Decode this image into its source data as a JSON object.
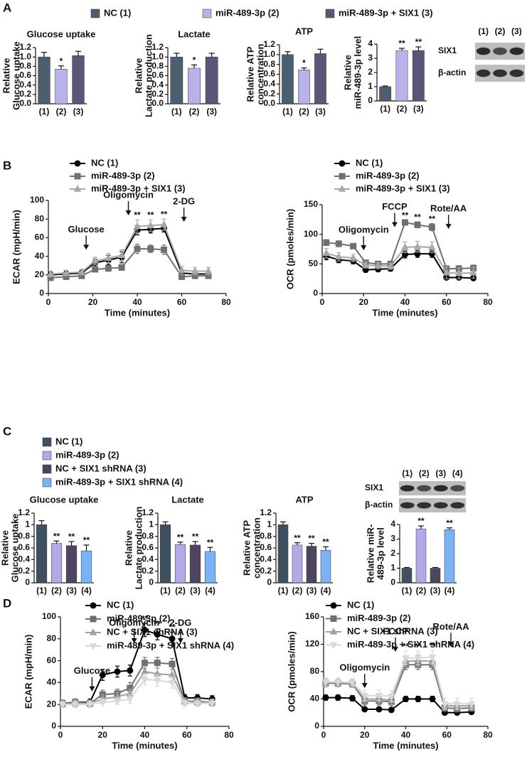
{
  "panels": [
    "A",
    "B",
    "C",
    "D"
  ],
  "legends": [
    {
      "entries": [
        {
          "name": "NC (1)",
          "color": "#4d5e6e"
        },
        {
          "name": "miR-489-3p (2)",
          "color": "#b9b2ea"
        },
        {
          "name": "miR-489-3p + SIX1 (3)",
          "color": "#5e5478"
        }
      ]
    },
    {
      "entries": [
        {
          "name": "NC (1)",
          "color": "#3f5160"
        },
        {
          "name": "miR-489-3p (2)",
          "color": "#b3a9e8"
        },
        {
          "name": "NC + SIX1 shRNA (3)",
          "color": "#4f4560"
        },
        {
          "name": "miR-489-3p + SIX1 shRNA (4)",
          "color": "#79b3f5"
        }
      ]
    }
  ],
  "blots": [
    {
      "lanes": [
        "(1)",
        "(2)",
        "(3)"
      ],
      "rows": [
        "SIX1",
        "β-actin"
      ]
    },
    {
      "lanes": [
        "(1)",
        "(2)",
        "(3)",
        "(4)"
      ],
      "rows": [
        "SIX1",
        "β-actin"
      ]
    }
  ],
  "chart_data": [
    {
      "type": "bar",
      "title": "Glucose uptake",
      "ylabel": [
        "Relative",
        "Glucose uptake"
      ],
      "categories": [
        "(1)",
        "(2)",
        "(3)"
      ],
      "values": [
        1.0,
        0.74,
        1.03
      ],
      "errors": [
        0.1,
        0.07,
        0.09
      ],
      "colors": [
        "#4d5e6e",
        "#b9b2ea",
        "#5e5478"
      ],
      "sig": [
        null,
        "*",
        null
      ],
      "ylim": [
        0,
        1.2
      ],
      "yticks": [
        {
          "value": 0,
          "label": "0.0"
        },
        0.2,
        0.4,
        0.6,
        0.8,
        {
          "value": 1,
          "label": "1.0"
        },
        1.2
      ]
    },
    {
      "type": "bar",
      "title": "Lactate",
      "ylabel": [
        "Relative",
        "Lactate production"
      ],
      "categories": [
        "(1)",
        "(2)",
        "(3)"
      ],
      "values": [
        1.0,
        0.76,
        1.0
      ],
      "errors": [
        0.08,
        0.07,
        0.08
      ],
      "colors": [
        "#4d5e6e",
        "#b9b2ea",
        "#5e5478"
      ],
      "sig": [
        null,
        "*",
        null
      ],
      "ylim": [
        0,
        1.2
      ],
      "yticks": [
        {
          "value": 0,
          "label": "0.0"
        },
        0.2,
        0.4,
        0.6,
        0.8,
        {
          "value": 1,
          "label": "1.0"
        },
        1.2
      ]
    },
    {
      "type": "bar",
      "title": "ATP",
      "ylabel": [
        "Relative ATP",
        "concentration"
      ],
      "categories": [
        "(1)",
        "(2)",
        "(3)"
      ],
      "values": [
        1.0,
        0.69,
        1.02
      ],
      "errors": [
        0.06,
        0.04,
        0.09
      ],
      "colors": [
        "#4d5e6e",
        "#b9b2ea",
        "#5e5478"
      ],
      "sig": [
        null,
        "*",
        null
      ],
      "ylim": [
        0,
        1.2
      ],
      "yticks": [
        {
          "value": 0,
          "label": "0.0"
        },
        0.2,
        0.4,
        0.6,
        0.8,
        {
          "value": 1,
          "label": "1.0"
        },
        1.2
      ]
    },
    {
      "type": "bar",
      "ylabel": [
        "Relative",
        "miR-489-3p level"
      ],
      "categories": [
        "(1)",
        "(2)",
        "(3)"
      ],
      "values": [
        1.0,
        3.55,
        3.55
      ],
      "errors": [
        0.05,
        0.15,
        0.25
      ],
      "colors": [
        "#4d5e6e",
        "#b9b2ea",
        "#5e5478"
      ],
      "sig": [
        null,
        "**",
        "**"
      ],
      "ylim": [
        0,
        4
      ],
      "yticks": [
        0,
        1,
        2,
        3,
        4
      ]
    },
    {
      "type": "line",
      "ylabel": "ECAR (mpH/min)",
      "xlabel": "Time (minutes)",
      "xlim": [
        0,
        80
      ],
      "xticks": [
        0,
        20,
        40,
        60,
        80
      ],
      "ylim": [
        0,
        100
      ],
      "yticks": [
        0,
        20,
        40,
        60,
        80,
        100
      ],
      "x": [
        1,
        8,
        15,
        21,
        27,
        33,
        40,
        46,
        52,
        60,
        66,
        72
      ],
      "series": [
        {
          "name": "NC (1)",
          "color": "#000000",
          "marker": "circle",
          "values": [
            20,
            21,
            22,
            33,
            36,
            39,
            68,
            69,
            70,
            22,
            21,
            21
          ],
          "errors": [
            3,
            3,
            3,
            4,
            5,
            6,
            5,
            4,
            4,
            3,
            3,
            3
          ]
        },
        {
          "name": "miR-489-3p (2)",
          "color": "#707070",
          "marker": "square",
          "values": [
            17,
            18,
            19,
            26,
            27,
            28,
            48,
            48,
            47,
            18,
            19,
            19
          ],
          "errors": [
            3,
            2,
            2,
            3,
            3,
            3,
            5,
            4,
            5,
            2,
            2,
            2
          ]
        },
        {
          "name": "miR-489-3p + SIX1 (3)",
          "color": "#a8a8a8",
          "marker": "triangle",
          "values": [
            21,
            22,
            23,
            35,
            38,
            41,
            72,
            73,
            74,
            25,
            24,
            24
          ],
          "errors": [
            3,
            3,
            3,
            4,
            5,
            6,
            7,
            6,
            6,
            4,
            4,
            4
          ]
        }
      ],
      "sig": [
        null,
        null,
        null,
        null,
        null,
        null,
        "**",
        "**",
        "**",
        null,
        null,
        null
      ],
      "annotations": [
        {
          "text": "Glucose",
          "x": 17,
          "y": 47
        },
        {
          "text": "Oligomycin",
          "x": 36,
          "y": 84
        },
        {
          "text": "2-DG",
          "x": 61,
          "y": 77
        }
      ]
    },
    {
      "type": "line",
      "ylabel": "OCR (pmoles/min)",
      "xlabel": "Time (minutes)",
      "xlim": [
        0,
        80
      ],
      "xticks": [
        0,
        20,
        40,
        60,
        80
      ],
      "ylim": [
        0,
        150
      ],
      "yticks": [
        0,
        50,
        100,
        150
      ],
      "x": [
        2,
        8,
        15,
        21,
        27,
        33,
        40,
        46,
        53,
        60,
        66,
        73
      ],
      "series": [
        {
          "name": "NC (1)",
          "color": "#000000",
          "marker": "circle",
          "values": [
            63,
            57,
            55,
            40,
            41,
            42,
            66,
            67,
            67,
            27,
            27,
            26
          ],
          "errors": [
            6,
            5,
            5,
            4,
            4,
            4,
            6,
            6,
            6,
            3,
            3,
            3
          ]
        },
        {
          "name": "miR-489-3p (2)",
          "color": "#707070",
          "marker": "square",
          "values": [
            86,
            84,
            80,
            52,
            50,
            50,
            120,
            116,
            112,
            42,
            42,
            43
          ],
          "errors": [
            5,
            5,
            4,
            4,
            4,
            4,
            4,
            5,
            6,
            5,
            5,
            5
          ]
        },
        {
          "name": "miR-489-3p + SIX1 (3)",
          "color": "#a8a8a8",
          "marker": "triangle",
          "values": [
            68,
            62,
            60,
            48,
            47,
            46,
            78,
            79,
            78,
            35,
            34,
            35
          ],
          "errors": [
            8,
            7,
            6,
            5,
            5,
            5,
            9,
            9,
            9,
            10,
            9,
            9
          ]
        }
      ],
      "sig": [
        null,
        null,
        null,
        null,
        null,
        null,
        "**",
        "**",
        "**",
        null,
        null,
        null
      ],
      "annotations": [
        {
          "text": "Oligomycin",
          "x": 20,
          "y": 73
        },
        {
          "text": "FCCP",
          "x": 35,
          "y": 112
        },
        {
          "text": "Rote/AA",
          "x": 61,
          "y": 109
        }
      ]
    },
    {
      "type": "bar",
      "title": "Glucose uptake",
      "ylabel": [
        "Relative",
        "Glucose uptake"
      ],
      "categories": [
        "(1)",
        "(2)",
        "(3)",
        "(4)"
      ],
      "values": [
        1.0,
        0.68,
        0.64,
        0.55
      ],
      "errors": [
        0.07,
        0.04,
        0.07,
        0.1
      ],
      "colors": [
        "#3f5160",
        "#b3a9e8",
        "#4f4560",
        "#79b3f5"
      ],
      "sig": [
        null,
        "**",
        "**",
        "**"
      ],
      "ylim": [
        0,
        1.2
      ],
      "yticks": [
        0,
        0.2,
        0.4,
        0.6,
        0.8,
        1,
        1.2
      ]
    },
    {
      "type": "bar",
      "title": "Lactate",
      "ylabel": [
        "Relative",
        "Lactate production"
      ],
      "categories": [
        "(1)",
        "(2)",
        "(3)",
        "(4)"
      ],
      "values": [
        1.0,
        0.66,
        0.65,
        0.54
      ],
      "errors": [
        0.05,
        0.04,
        0.06,
        0.07
      ],
      "colors": [
        "#3f5160",
        "#b3a9e8",
        "#4f4560",
        "#79b3f5"
      ],
      "sig": [
        null,
        "**",
        "**",
        "**"
      ],
      "ylim": [
        0,
        1.2
      ],
      "yticks": [
        0,
        0.2,
        0.4,
        0.6,
        0.8,
        1,
        1.2
      ]
    },
    {
      "type": "bar",
      "title": "ATP",
      "ylabel": [
        "Relative ATP",
        "concentration"
      ],
      "categories": [
        "(1)",
        "(2)",
        "(3)",
        "(4)"
      ],
      "values": [
        1.0,
        0.65,
        0.63,
        0.56
      ],
      "errors": [
        0.05,
        0.04,
        0.05,
        0.06
      ],
      "colors": [
        "#3f5160",
        "#b3a9e8",
        "#4f4560",
        "#79b3f5"
      ],
      "sig": [
        null,
        "**",
        "**",
        "**"
      ],
      "ylim": [
        0,
        1.2
      ],
      "yticks": [
        0,
        0.2,
        0.4,
        0.6,
        0.8,
        1,
        1.2
      ]
    },
    {
      "type": "bar",
      "ylabel": [
        "Relative miR-",
        "489-3p level"
      ],
      "categories": [
        "(1)",
        "(2)",
        "(3)",
        "(4)"
      ],
      "values": [
        1.0,
        3.7,
        1.0,
        3.65
      ],
      "errors": [
        0.05,
        0.2,
        0.05,
        0.12
      ],
      "colors": [
        "#3f5160",
        "#b3a9e8",
        "#4f4560",
        "#79b3f5"
      ],
      "sig": [
        null,
        "**",
        null,
        "**"
      ],
      "ylim": [
        0,
        4
      ],
      "yticks": [
        0,
        1,
        2,
        3,
        4
      ]
    },
    {
      "type": "line",
      "ylabel": "ECAR (mpH/min)",
      "xlabel": "Time (minutes)",
      "xlim": [
        0,
        80
      ],
      "xticks": [
        0,
        20,
        40,
        60,
        80
      ],
      "ylim": [
        0,
        100
      ],
      "yticks": [
        0,
        20,
        40,
        60,
        80,
        100
      ],
      "x": [
        1,
        7,
        14,
        20,
        27,
        33,
        40,
        46,
        53,
        59,
        65,
        72
      ],
      "series": [
        {
          "name": "NC (1)",
          "color": "#000000",
          "marker": "circle",
          "values": [
            21,
            22,
            22,
            47,
            50,
            51,
            88,
            84,
            80,
            26,
            26,
            25
          ],
          "errors": [
            3,
            3,
            3,
            5,
            5,
            5,
            6,
            5,
            6,
            3,
            3,
            3
          ]
        },
        {
          "name": "miR-489-3p (2)",
          "color": "#707070",
          "marker": "square",
          "values": [
            21,
            22,
            21,
            29,
            30,
            35,
            58,
            58,
            57,
            23,
            23,
            22
          ],
          "errors": [
            3,
            3,
            3,
            4,
            4,
            5,
            5,
            5,
            5,
            3,
            3,
            3
          ]
        },
        {
          "name": "NC + SIX1 shRNA (3)",
          "color": "#a0a0a0",
          "marker": "triangle",
          "values": [
            20,
            21,
            21,
            25,
            27,
            30,
            50,
            48,
            47,
            23,
            22,
            22
          ],
          "errors": [
            3,
            3,
            3,
            4,
            4,
            4,
            5,
            5,
            5,
            3,
            3,
            3
          ]
        },
        {
          "name": "miR-489-3p + SIX1 shRNA (4)",
          "color": "#d8d8d8",
          "marker": "triangle-down",
          "values": [
            20,
            20,
            20,
            22,
            23,
            25,
            43,
            42,
            40,
            21,
            21,
            21
          ],
          "errors": [
            3,
            3,
            3,
            3,
            3,
            4,
            5,
            5,
            5,
            3,
            3,
            3
          ]
        }
      ],
      "sig": [
        null,
        null,
        null,
        null,
        null,
        null,
        "**",
        "**",
        "**",
        null,
        null,
        null
      ],
      "annotations": [
        {
          "text": "Glucose",
          "x": 15,
          "y": 32
        },
        {
          "text": "Oligomycin",
          "x": 35,
          "y": 76
        },
        {
          "text": "2-DG",
          "x": 57,
          "y": 76
        }
      ]
    },
    {
      "type": "line",
      "ylabel": "OCR (pmoles/min)",
      "xlabel": "Time (minutes)",
      "xlim": [
        0,
        80
      ],
      "xticks": [
        0,
        20,
        40,
        60,
        80
      ],
      "ylim": [
        0,
        160
      ],
      "yticks": [
        0,
        40,
        80,
        120,
        160
      ],
      "x": [
        1,
        7,
        14,
        20,
        27,
        33,
        40,
        46,
        53,
        59,
        65,
        72
      ],
      "series": [
        {
          "name": "NC (1)",
          "color": "#000000",
          "marker": "circle",
          "values": [
            42,
            42,
            41,
            25,
            25,
            24,
            40,
            40,
            40,
            20,
            20,
            21
          ],
          "errors": [
            4,
            4,
            4,
            3,
            3,
            3,
            4,
            4,
            4,
            3,
            3,
            3
          ]
        },
        {
          "name": "miR-489-3p (2)",
          "color": "#707070",
          "marker": "square",
          "values": [
            63,
            63,
            62,
            37,
            37,
            36,
            90,
            90,
            90,
            27,
            26,
            27
          ],
          "errors": [
            5,
            5,
            5,
            6,
            6,
            6,
            7,
            7,
            7,
            5,
            5,
            5
          ]
        },
        {
          "name": "NC + SIX1 shRNA (3)",
          "color": "#a0a0a0",
          "marker": "triangle",
          "values": [
            64,
            64,
            63,
            40,
            40,
            38,
            95,
            96,
            95,
            30,
            30,
            30
          ],
          "errors": [
            5,
            5,
            5,
            6,
            6,
            6,
            8,
            8,
            8,
            6,
            6,
            6
          ]
        },
        {
          "name": "miR-489-3p + SIX1 shRNA (4)",
          "color": "#d8d8d8",
          "marker": "triangle-down",
          "values": [
            65,
            65,
            64,
            45,
            45,
            44,
            100,
            100,
            101,
            33,
            33,
            33
          ],
          "errors": [
            6,
            6,
            6,
            8,
            8,
            8,
            10,
            10,
            10,
            8,
            8,
            8
          ]
        }
      ],
      "sig": [
        null,
        null,
        null,
        null,
        null,
        null,
        "**",
        "**",
        "**",
        null,
        null,
        null
      ],
      "annotations": [
        {
          "text": "Oligomycin",
          "x": 20,
          "y": 56
        },
        {
          "text": "FCCP",
          "x": 35,
          "y": 109
        },
        {
          "text": "Rote/AA",
          "x": 62,
          "y": 116
        }
      ]
    }
  ]
}
